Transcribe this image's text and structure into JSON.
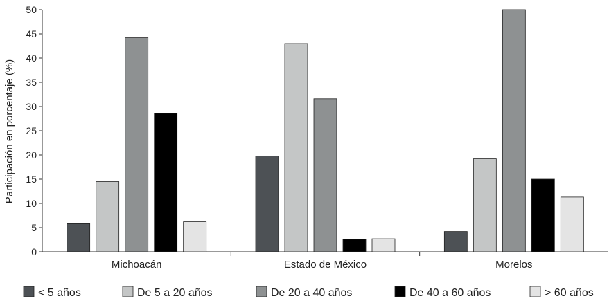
{
  "chart_data": {
    "type": "bar",
    "title": "",
    "xlabel": "",
    "ylabel": "Participación en porcentaje (%)",
    "ylim": [
      0,
      50
    ],
    "yticks": [
      0,
      5,
      10,
      15,
      20,
      25,
      30,
      35,
      40,
      45,
      50
    ],
    "grid": false,
    "legend_position": "bottom",
    "categories": [
      "Michoacán",
      "Estado de México",
      "Morelos"
    ],
    "series": [
      {
        "name": "< 5 años",
        "color": "#4d5155",
        "values": [
          5.8,
          19.8,
          4.2
        ]
      },
      {
        "name": "De 5 a 20 años",
        "color": "#c4c6c6",
        "values": [
          14.5,
          43.0,
          19.2
        ]
      },
      {
        "name": "De 20 a 40 años",
        "color": "#8e9192",
        "values": [
          44.2,
          31.6,
          50.0
        ]
      },
      {
        "name": "De 40 a 60 años",
        "color": "#000000",
        "values": [
          28.6,
          2.6,
          15.0
        ]
      },
      {
        "name": "> 60 años",
        "color": "#e4e4e4",
        "values": [
          6.2,
          2.7,
          11.3
        ]
      }
    ]
  }
}
